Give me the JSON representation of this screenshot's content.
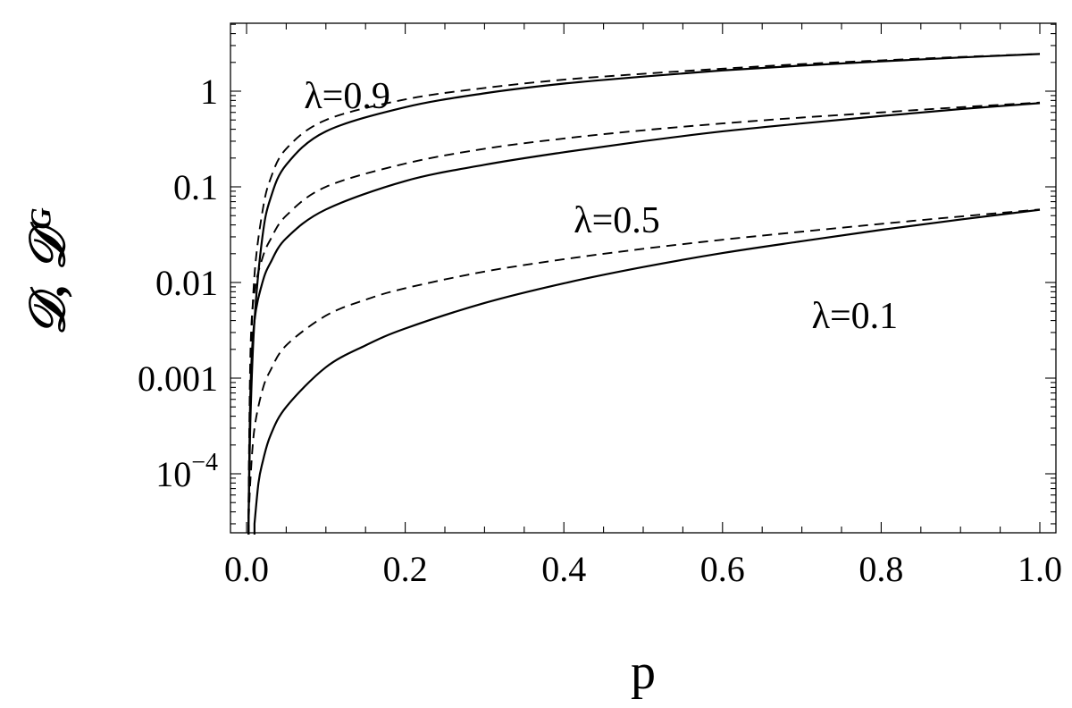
{
  "chart_data": {
    "type": "line",
    "title": "",
    "xlabel": "p",
    "ylabel": "𝒟, 𝒟ᴳ",
    "x_range": [
      0.0,
      1.0
    ],
    "y_range": [
      2.5e-05,
      5.0
    ],
    "y_scale": "log",
    "grid": false,
    "legend": "none",
    "x_ticks": [
      {
        "value": 0.0,
        "label": "0.0"
      },
      {
        "value": 0.2,
        "label": "0.2"
      },
      {
        "value": 0.4,
        "label": "0.4"
      },
      {
        "value": 0.6,
        "label": "0.6"
      },
      {
        "value": 0.8,
        "label": "0.8"
      },
      {
        "value": 1.0,
        "label": "1.0"
      }
    ],
    "y_ticks": [
      {
        "value": 0.0001,
        "base": "10",
        "exp": "−4"
      },
      {
        "value": 0.001,
        "label": "0.001"
      },
      {
        "value": 0.01,
        "label": "0.01"
      },
      {
        "value": 0.1,
        "label": "0.1"
      },
      {
        "value": 1,
        "label": "1"
      }
    ],
    "annotations": [
      {
        "text": "λ=0.9",
        "x": 0.14,
        "y": 0.9
      },
      {
        "text": "λ=0.5",
        "x": 0.48,
        "y": 0.045
      },
      {
        "text": "λ=0.1",
        "x": 0.78,
        "y": 0.0045
      }
    ],
    "series": [
      {
        "style": "solid",
        "x": [
          0.0025,
          0.005,
          0.01,
          0.02,
          0.03,
          0.05,
          0.1,
          0.2,
          0.3,
          0.4,
          0.5,
          0.6,
          0.7,
          0.8,
          0.9,
          1.0
        ],
        "y": [
          3e-05,
          0.0004,
          0.004,
          0.03,
          0.075,
          0.17,
          0.38,
          0.68,
          0.95,
          1.2,
          1.42,
          1.65,
          1.85,
          2.05,
          2.25,
          2.45
        ]
      },
      {
        "style": "dashed",
        "x": [
          0.0025,
          0.005,
          0.01,
          0.02,
          0.03,
          0.05,
          0.1,
          0.2,
          0.3,
          0.4,
          0.5,
          0.6,
          0.7,
          0.8,
          0.9,
          1.0
        ],
        "y": [
          4e-05,
          0.0012,
          0.012,
          0.055,
          0.12,
          0.25,
          0.5,
          0.82,
          1.08,
          1.32,
          1.52,
          1.72,
          1.92,
          2.1,
          2.28,
          2.45
        ]
      },
      {
        "style": "solid",
        "x": [
          0.0025,
          0.005,
          0.01,
          0.02,
          0.03,
          0.05,
          0.1,
          0.2,
          0.3,
          0.4,
          0.5,
          0.6,
          0.7,
          0.8,
          0.9,
          1.0
        ],
        "y": [
          3e-05,
          0.0008,
          0.004,
          0.01,
          0.016,
          0.029,
          0.058,
          0.115,
          0.17,
          0.23,
          0.3,
          0.38,
          0.46,
          0.55,
          0.65,
          0.75
        ]
      },
      {
        "style": "dashed",
        "x": [
          0.0025,
          0.005,
          0.01,
          0.02,
          0.03,
          0.05,
          0.1,
          0.2,
          0.3,
          0.4,
          0.5,
          0.6,
          0.7,
          0.8,
          0.9,
          1.0
        ],
        "y": [
          5e-05,
          0.002,
          0.008,
          0.018,
          0.028,
          0.05,
          0.1,
          0.175,
          0.25,
          0.32,
          0.39,
          0.46,
          0.53,
          0.6,
          0.68,
          0.76
        ]
      },
      {
        "style": "solid",
        "x": [
          0.01,
          0.015,
          0.02,
          0.03,
          0.05,
          0.1,
          0.15,
          0.2,
          0.3,
          0.4,
          0.5,
          0.6,
          0.7,
          0.8,
          0.9,
          1.0
        ],
        "y": [
          3e-05,
          8e-05,
          0.00013,
          0.00025,
          0.0005,
          0.0013,
          0.0022,
          0.0033,
          0.0061,
          0.0098,
          0.0145,
          0.0203,
          0.027,
          0.0355,
          0.0455,
          0.0575
        ]
      },
      {
        "style": "dashed",
        "x": [
          0.0025,
          0.005,
          0.01,
          0.02,
          0.03,
          0.05,
          0.1,
          0.15,
          0.2,
          0.3,
          0.4,
          0.5,
          0.6,
          0.7,
          0.8,
          0.9,
          1.0
        ],
        "y": [
          3e-05,
          9e-05,
          0.0003,
          0.00075,
          0.0012,
          0.0022,
          0.0045,
          0.0066,
          0.0087,
          0.013,
          0.0175,
          0.0225,
          0.028,
          0.034,
          0.041,
          0.049,
          0.058
        ]
      }
    ]
  }
}
